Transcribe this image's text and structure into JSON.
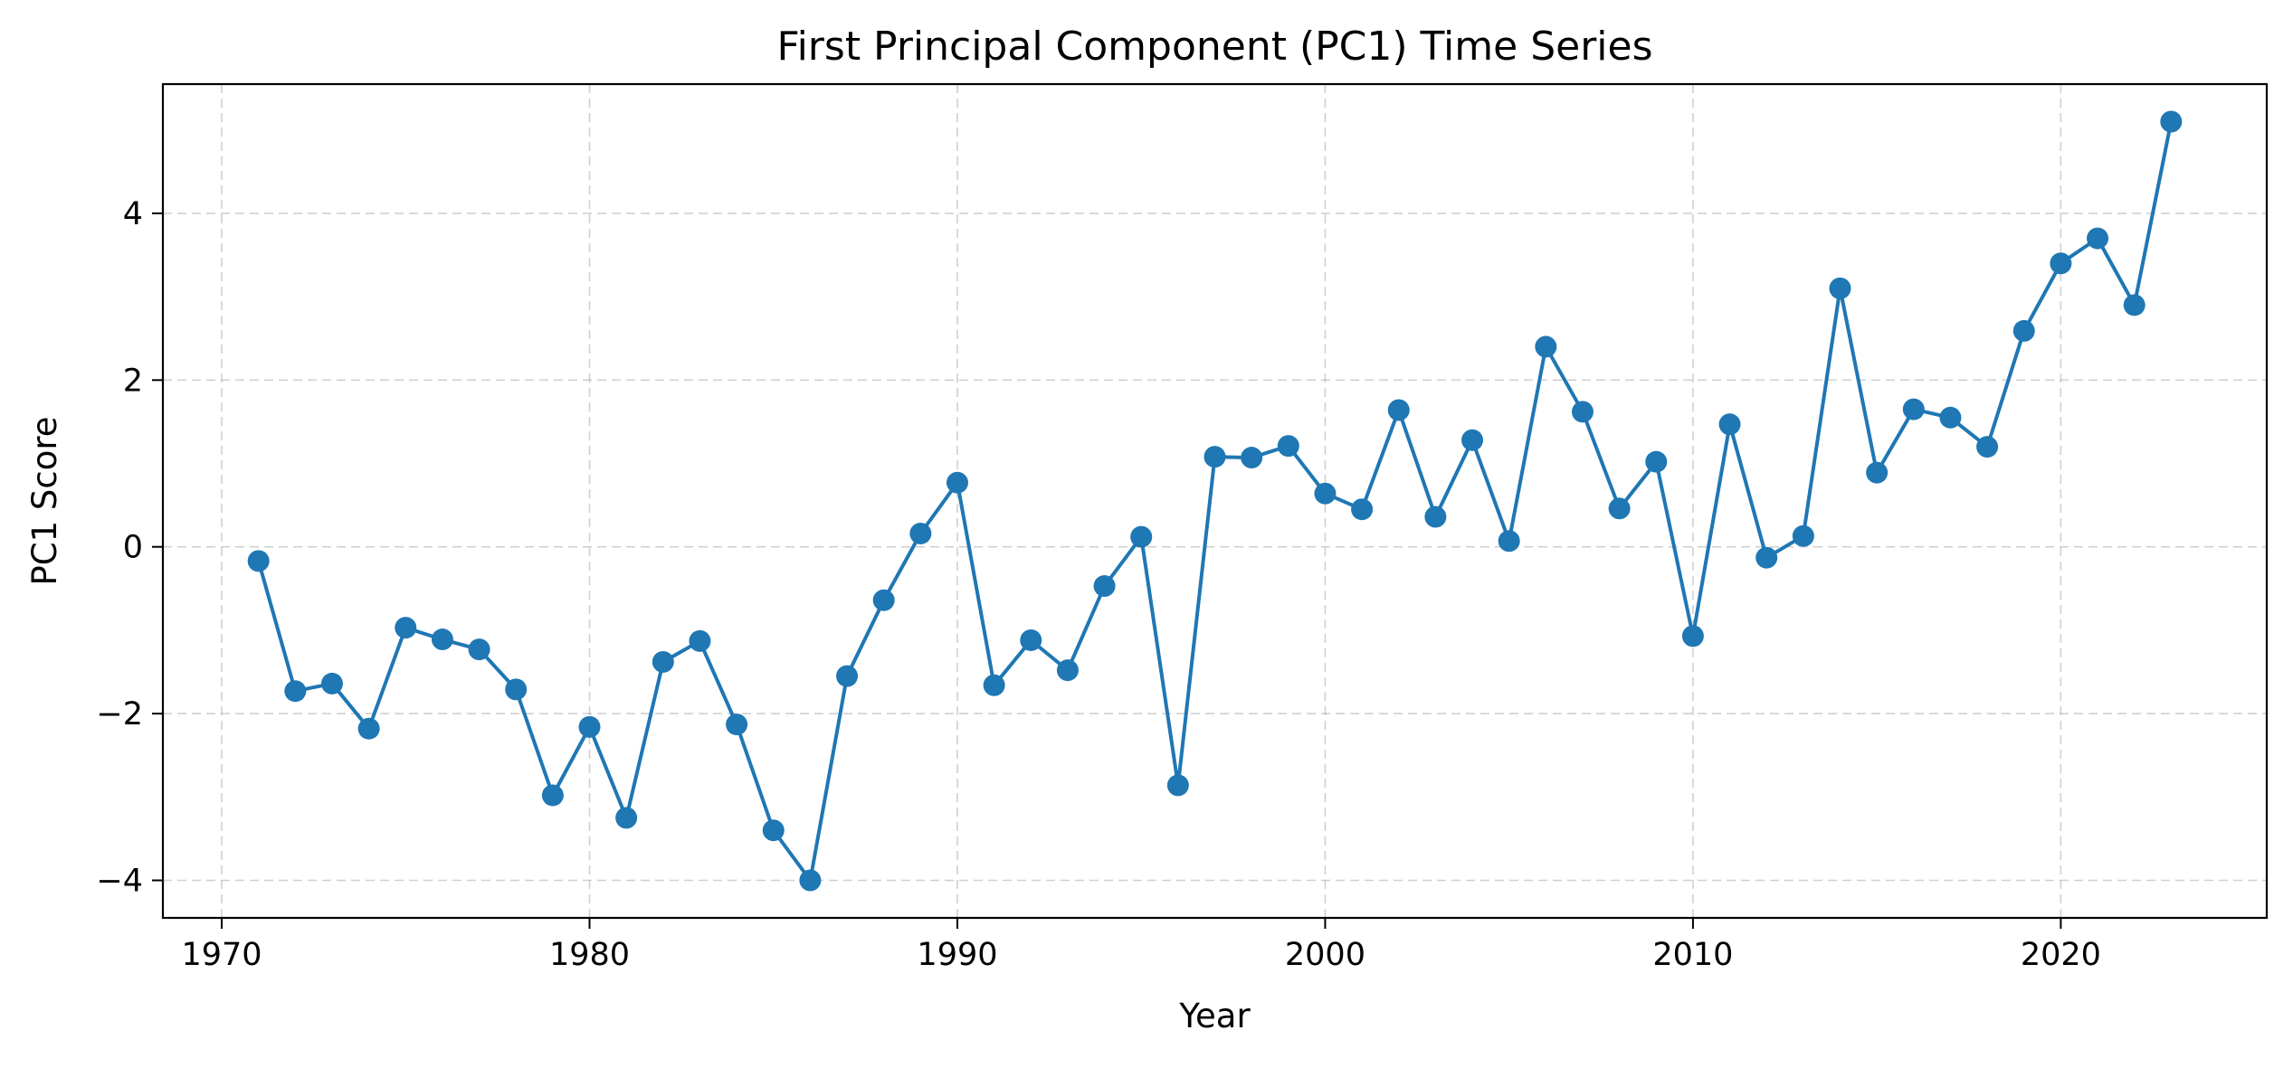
{
  "chart_data": {
    "type": "line",
    "title": "First Principal Component (PC1) Time Series",
    "xlabel": "Year",
    "ylabel": "PC1 Score",
    "xlim": [
      1968.4,
      2025.6
    ],
    "ylim": [
      -4.45,
      5.55
    ],
    "xticks": [
      1970,
      1980,
      1990,
      2000,
      2010,
      2020
    ],
    "yticks": [
      -4,
      -2,
      0,
      2,
      4
    ],
    "grid": true,
    "grid_style": "dashed",
    "marker": "circle",
    "series": [
      {
        "color": "#1f77b4",
        "x": [
          1971,
          1972,
          1973,
          1974,
          1975,
          1976,
          1977,
          1978,
          1979,
          1980,
          1981,
          1982,
          1983,
          1984,
          1985,
          1986,
          1987,
          1988,
          1989,
          1990,
          1991,
          1992,
          1993,
          1994,
          1995,
          1996,
          1997,
          1998,
          1999,
          2000,
          2001,
          2002,
          2003,
          2004,
          2005,
          2006,
          2007,
          2008,
          2009,
          2010,
          2011,
          2012,
          2013,
          2014,
          2015,
          2016,
          2017,
          2018,
          2019,
          2020,
          2021,
          2022,
          2023
        ],
        "values": [
          -0.17,
          -1.73,
          -1.64,
          -2.18,
          -0.97,
          -1.11,
          -1.23,
          -1.71,
          -2.98,
          -2.16,
          -3.25,
          -1.38,
          -1.13,
          -2.13,
          -3.4,
          -4.0,
          -1.55,
          -0.64,
          0.16,
          0.77,
          -1.66,
          -1.12,
          -1.48,
          -0.47,
          0.12,
          -2.86,
          1.08,
          1.07,
          1.21,
          0.64,
          0.45,
          1.64,
          0.36,
          1.28,
          0.07,
          2.4,
          1.62,
          0.46,
          1.02,
          -1.07,
          1.47,
          -0.13,
          0.13,
          3.1,
          0.89,
          1.65,
          1.55,
          1.2,
          2.59,
          3.4,
          3.7,
          2.9,
          5.1
        ]
      }
    ]
  }
}
